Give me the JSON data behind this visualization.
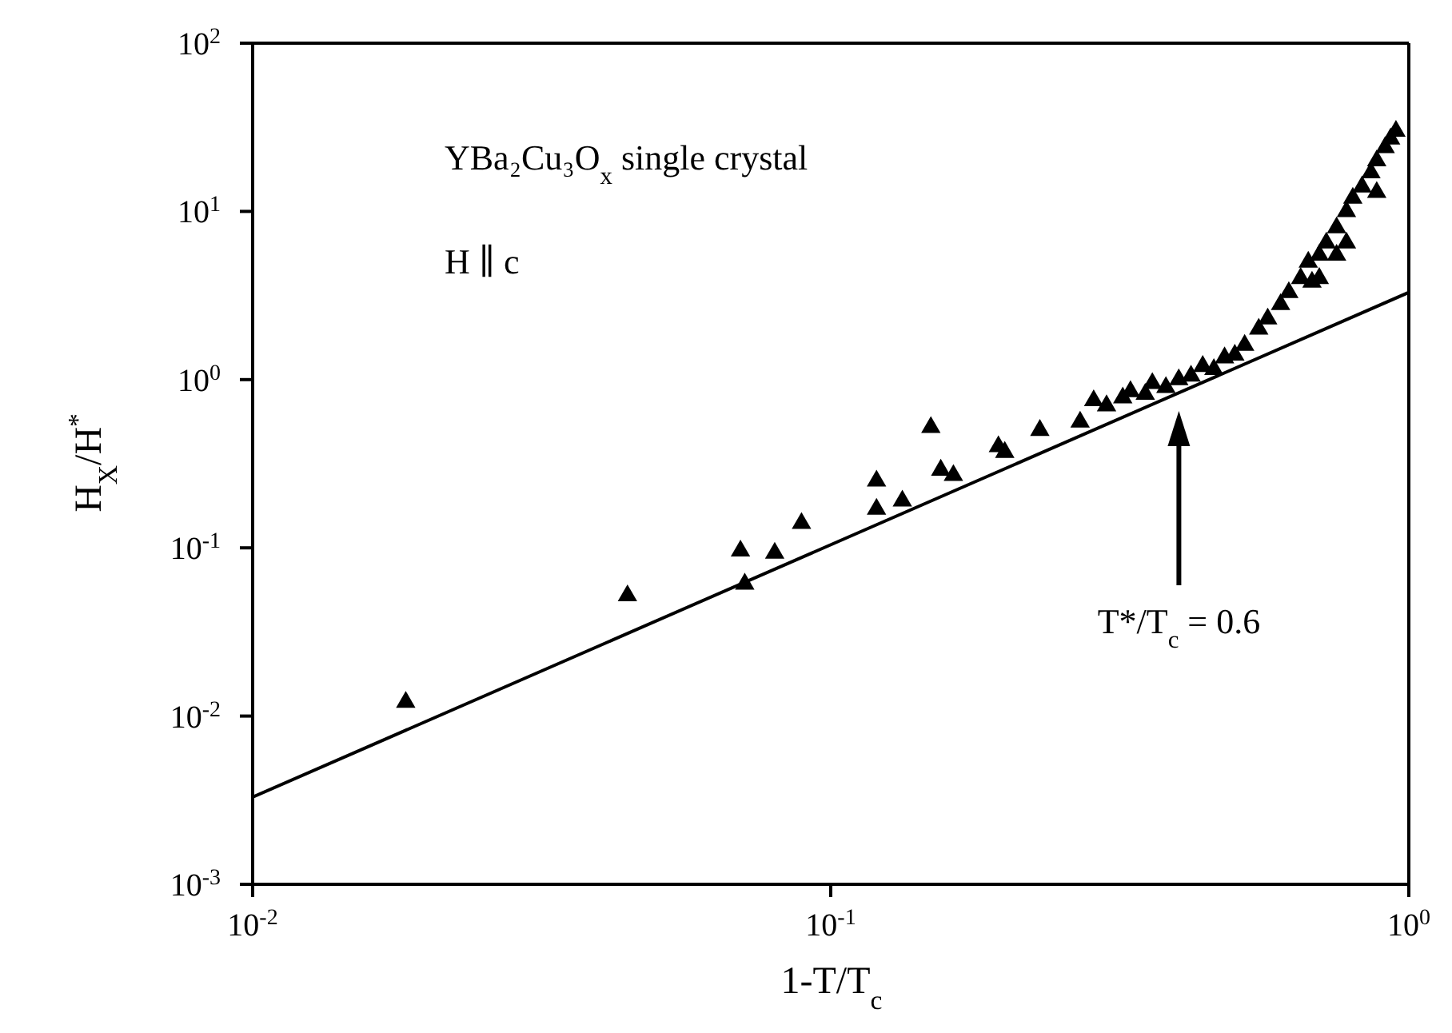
{
  "chart_data": {
    "type": "scatter",
    "xlabel": "1-T/T$_{c}$",
    "ylabel": "H$_{X}$/H$^{*}$",
    "log": "xy",
    "xlim": [
      0.01,
      1
    ],
    "ylim": [
      0.001,
      100
    ],
    "xticks": [
      {
        "value": 0.01,
        "label": "10$^{-2}$"
      },
      {
        "value": 0.1,
        "label": "10$^{-1}$"
      },
      {
        "value": 1,
        "label": "10$^{0}$"
      }
    ],
    "yticks": [
      {
        "value": 0.001,
        "label": "10$^{-3}$"
      },
      {
        "value": 0.01,
        "label": "10$^{-2}$"
      },
      {
        "value": 0.1,
        "label": "10$^{-1}$"
      },
      {
        "value": 1,
        "label": "10$^{0}$"
      },
      {
        "value": 10,
        "label": "10$^{1}$"
      },
      {
        "value": 100,
        "label": "10$^{2}$"
      }
    ],
    "annotations": [
      "YBa₂Cu₃O$_{x}$ single crystal",
      "H ∥ c",
      "T*/T$_{c}$ = 0.6"
    ],
    "series": [
      {
        "color": "#000000",
        "marker": "triangle",
        "x": [
          0.0184,
          0.0445,
          0.0698,
          0.071,
          0.08,
          0.089,
          0.12,
          0.12,
          0.133,
          0.149,
          0.155,
          0.163,
          0.195,
          0.2,
          0.23,
          0.27,
          0.285,
          0.3,
          0.32,
          0.33,
          0.35,
          0.36,
          0.38,
          0.4,
          0.42,
          0.44,
          0.46,
          0.48,
          0.5,
          0.52,
          0.55,
          0.57,
          0.6,
          0.62,
          0.65,
          0.67,
          0.68,
          0.7,
          0.7,
          0.72,
          0.75,
          0.75,
          0.78,
          0.78,
          0.8,
          0.83,
          0.86,
          0.88,
          0.88,
          0.91,
          0.93,
          0.95
        ],
        "values": [
          0.0121,
          0.052,
          0.096,
          0.061,
          0.093,
          0.14,
          0.25,
          0.17,
          0.19,
          0.52,
          0.29,
          0.27,
          0.4,
          0.37,
          0.5,
          0.56,
          0.75,
          0.7,
          0.78,
          0.85,
          0.82,
          0.95,
          0.9,
          1.0,
          1.05,
          1.2,
          1.15,
          1.35,
          1.4,
          1.6,
          2.0,
          2.3,
          2.8,
          3.3,
          4.0,
          5.0,
          3.8,
          5.5,
          4.0,
          6.5,
          8.0,
          5.5,
          10,
          6.5,
          12,
          14,
          17,
          20,
          13,
          24,
          27,
          30
        ]
      },
      {
        "type": "line",
        "color": "#000000",
        "marker": "none",
        "line_style": "solid",
        "x": [
          0.01,
          1
        ],
        "values": [
          0.0033,
          3.3
        ]
      }
    ]
  }
}
